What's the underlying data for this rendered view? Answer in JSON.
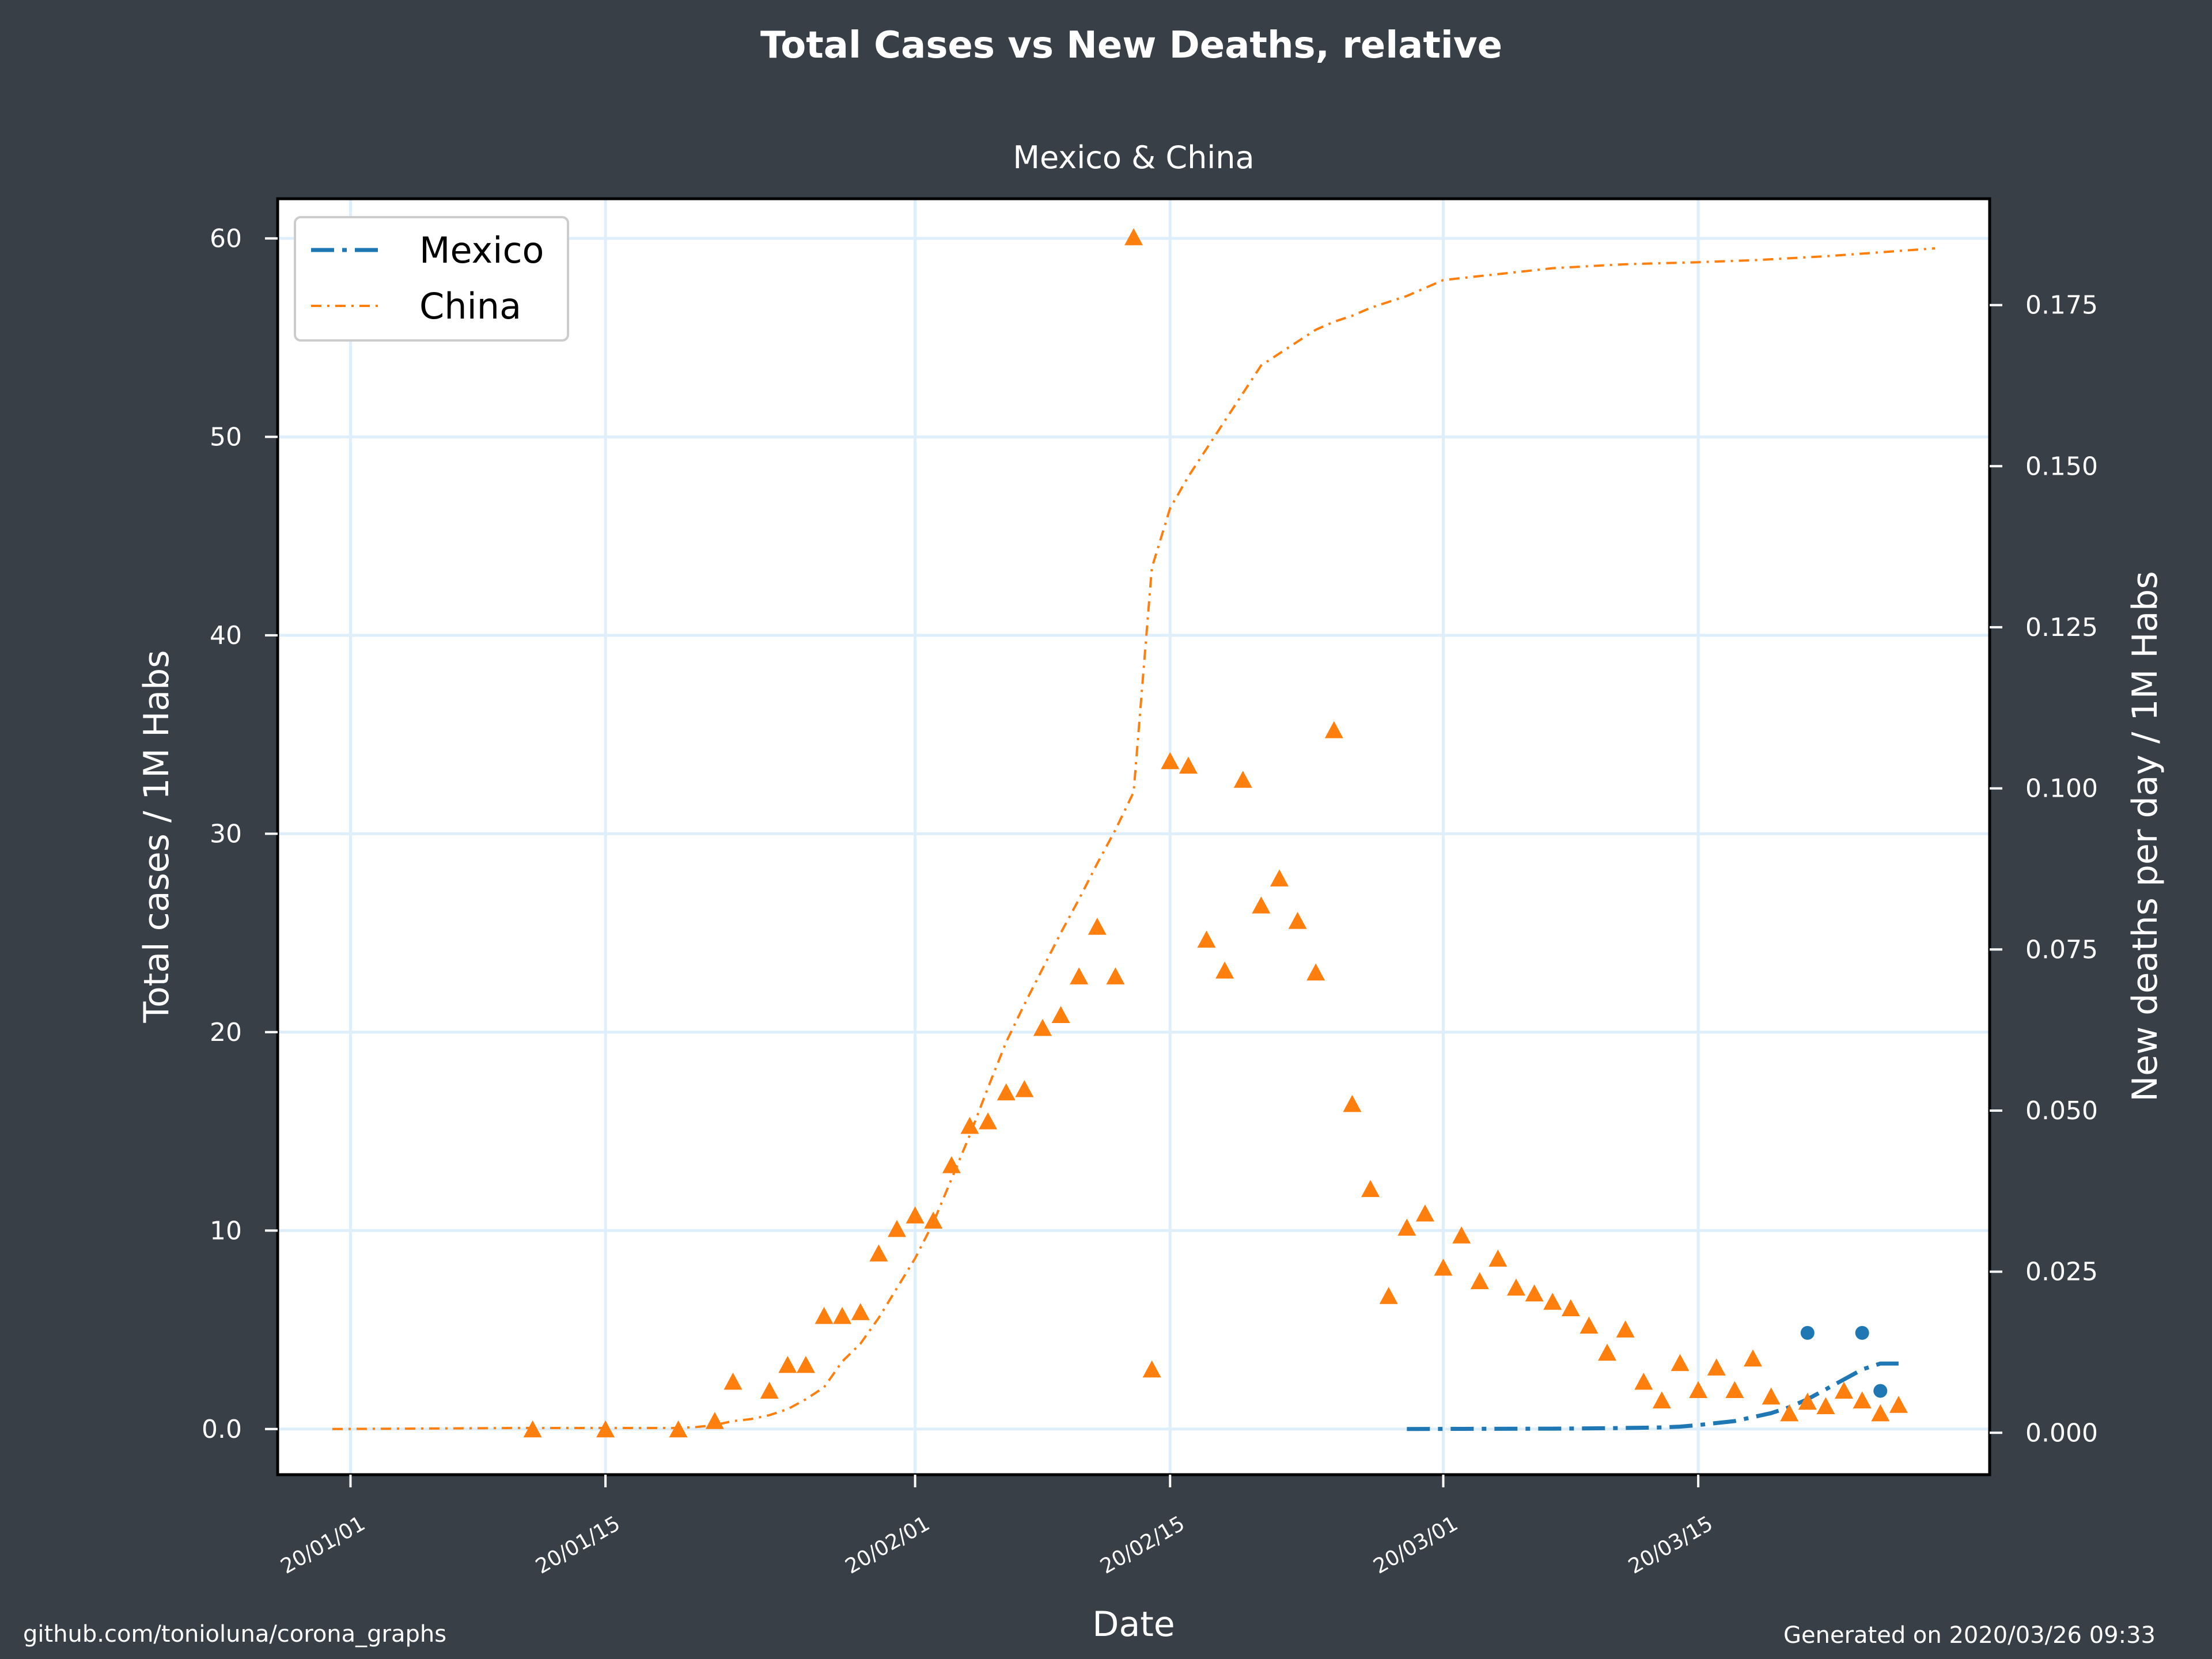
{
  "header": {
    "title": "Total Cases vs New Deaths, relative",
    "subtitle": "Mexico & China"
  },
  "footer": {
    "source": "github.com/tonioluna/corona_graphs",
    "generated": "Generated on 2020/03/26 09:33"
  },
  "colors": {
    "background": "#383f47",
    "plot_bg": "#ffffff",
    "grid": "#deeefb",
    "mexico": "#1f77b4",
    "china": "#ff7f0e",
    "text": "#ffffff"
  },
  "chart_data": {
    "type": "line",
    "title": "Total Cases vs New Deaths, relative",
    "subtitle": "Mexico & China",
    "xlabel": "Date",
    "ylabel": "Total cases / 1M Habs",
    "y2label": "New deaths per day / 1M Habs",
    "x_ticks": [
      "2020-01-01",
      "2020-01-15",
      "2020-02-01",
      "2020-02-15",
      "2020-03-01",
      "2020-03-15"
    ],
    "x_tick_labels": [
      "20/01/01",
      "20/01/15",
      "20/02/01",
      "20/02/15",
      "20/03/01",
      "20/03/15"
    ],
    "xlim": [
      "2019-12-28",
      "2020-03-31"
    ],
    "ylim": [
      -2.3,
      62
    ],
    "y_ticks": [
      0,
      10,
      20,
      30,
      40,
      50,
      60
    ],
    "y_tick_labels": [
      "0.0",
      "10",
      "20",
      "30",
      "40",
      "50",
      "60"
    ],
    "y2lim": [
      -0.0065,
      0.1915
    ],
    "y2_ticks": [
      0,
      0.025,
      0.05,
      0.075,
      0.1,
      0.125,
      0.15,
      0.175
    ],
    "y2_tick_labels": [
      "0.000",
      "0.025",
      "0.050",
      "0.075",
      "0.100",
      "0.125",
      "0.150",
      "0.175"
    ],
    "grid": true,
    "legend": "top-left",
    "series": [
      {
        "name": "Mexico",
        "axis": "left",
        "style": "dash-dot",
        "points": [
          [
            "2020-02-28",
            0.0
          ],
          [
            "2020-03-03",
            0.01
          ],
          [
            "2020-03-07",
            0.02
          ],
          [
            "2020-03-10",
            0.04
          ],
          [
            "2020-03-13",
            0.08
          ],
          [
            "2020-03-14",
            0.12
          ],
          [
            "2020-03-15",
            0.2
          ],
          [
            "2020-03-16",
            0.3
          ],
          [
            "2020-03-17",
            0.4
          ],
          [
            "2020-03-18",
            0.6
          ],
          [
            "2020-03-19",
            0.8
          ],
          [
            "2020-03-20",
            1.1
          ],
          [
            "2020-03-21",
            1.5
          ],
          [
            "2020-03-22",
            2.0
          ],
          [
            "2020-03-23",
            2.5
          ],
          [
            "2020-03-24",
            3.0
          ],
          [
            "2020-03-25",
            3.3
          ],
          [
            "2020-03-26",
            3.3
          ]
        ]
      },
      {
        "name": "China",
        "axis": "left",
        "style": "dash-dot",
        "points": [
          [
            "2019-12-31",
            0.0
          ],
          [
            "2020-01-10",
            0.05
          ],
          [
            "2020-01-19",
            0.05
          ],
          [
            "2020-01-20",
            0.1
          ],
          [
            "2020-01-21",
            0.2
          ],
          [
            "2020-01-22",
            0.4
          ],
          [
            "2020-01-23",
            0.5
          ],
          [
            "2020-01-24",
            0.7
          ],
          [
            "2020-01-25",
            1.0
          ],
          [
            "2020-01-26",
            1.5
          ],
          [
            "2020-01-27",
            2.1
          ],
          [
            "2020-01-28",
            3.4
          ],
          [
            "2020-01-29",
            4.3
          ],
          [
            "2020-01-30",
            5.6
          ],
          [
            "2020-01-31",
            7.1
          ],
          [
            "2020-02-01",
            8.6
          ],
          [
            "2020-02-02",
            10.4
          ],
          [
            "2020-02-03",
            12.6
          ],
          [
            "2020-02-04",
            14.8
          ],
          [
            "2020-02-05",
            17.2
          ],
          [
            "2020-02-06",
            19.5
          ],
          [
            "2020-02-07",
            21.4
          ],
          [
            "2020-02-08",
            23.2
          ],
          [
            "2020-02-09",
            25.0
          ],
          [
            "2020-02-10",
            26.7
          ],
          [
            "2020-02-11",
            28.5
          ],
          [
            "2020-02-12",
            30.2
          ],
          [
            "2020-02-13",
            32.1
          ],
          [
            "2020-02-14",
            43.4
          ],
          [
            "2020-02-15",
            46.4
          ],
          [
            "2020-02-16",
            48.0
          ],
          [
            "2020-02-17",
            49.4
          ],
          [
            "2020-02-18",
            50.8
          ],
          [
            "2020-02-19",
            52.2
          ],
          [
            "2020-02-20",
            53.6
          ],
          [
            "2020-02-21",
            54.2
          ],
          [
            "2020-02-22",
            54.8
          ],
          [
            "2020-02-23",
            55.4
          ],
          [
            "2020-02-24",
            55.8
          ],
          [
            "2020-02-25",
            56.1
          ],
          [
            "2020-02-26",
            56.5
          ],
          [
            "2020-02-27",
            56.8
          ],
          [
            "2020-02-28",
            57.1
          ],
          [
            "2020-02-29",
            57.5
          ],
          [
            "2020-03-01",
            57.9
          ],
          [
            "2020-03-03",
            58.1
          ],
          [
            "2020-03-05",
            58.3
          ],
          [
            "2020-03-07",
            58.5
          ],
          [
            "2020-03-09",
            58.6
          ],
          [
            "2020-03-11",
            58.7
          ],
          [
            "2020-03-15",
            58.8
          ],
          [
            "2020-03-18",
            58.9
          ],
          [
            "2020-03-22",
            59.1
          ],
          [
            "2020-03-25",
            59.3
          ],
          [
            "2020-03-28",
            59.5
          ]
        ]
      },
      {
        "name": "",
        "axis": "right",
        "style": "dots",
        "color": "mexico",
        "points": [
          [
            "2020-03-21",
            0.0155
          ],
          [
            "2020-03-24",
            0.0155
          ],
          [
            "2020-03-25",
            0.0065
          ]
        ]
      },
      {
        "name": "",
        "axis": "right",
        "style": "triangles",
        "color": "china",
        "points": [
          [
            "2020-01-11",
            0.0005
          ],
          [
            "2020-01-15",
            0.0005
          ],
          [
            "2020-01-19",
            0.0005
          ],
          [
            "2020-01-21",
            0.0018
          ],
          [
            "2020-01-22",
            0.0079
          ],
          [
            "2020-01-24",
            0.0065
          ],
          [
            "2020-01-25",
            0.0105
          ],
          [
            "2020-01-26",
            0.0105
          ],
          [
            "2020-01-27",
            0.0181
          ],
          [
            "2020-01-28",
            0.0181
          ],
          [
            "2020-01-29",
            0.0187
          ],
          [
            "2020-01-30",
            0.0278
          ],
          [
            "2020-01-31",
            0.0316
          ],
          [
            "2020-02-01",
            0.0337
          ],
          [
            "2020-02-02",
            0.0329
          ],
          [
            "2020-02-03",
            0.0415
          ],
          [
            "2020-02-04",
            0.0476
          ],
          [
            "2020-02-05",
            0.0483
          ],
          [
            "2020-02-06",
            0.0528
          ],
          [
            "2020-02-07",
            0.0533
          ],
          [
            "2020-02-08",
            0.0628
          ],
          [
            "2020-02-09",
            0.0648
          ],
          [
            "2020-02-10",
            0.0708
          ],
          [
            "2020-02-11",
            0.0785
          ],
          [
            "2020-02-12",
            0.0708
          ],
          [
            "2020-02-13",
            0.1855
          ],
          [
            "2020-02-14",
            0.0098
          ],
          [
            "2020-02-15",
            0.1042
          ],
          [
            "2020-02-16",
            0.1035
          ],
          [
            "2020-02-17",
            0.0765
          ],
          [
            "2020-02-18",
            0.0717
          ],
          [
            "2020-02-19",
            0.1013
          ],
          [
            "2020-02-20",
            0.0818
          ],
          [
            "2020-02-21",
            0.086
          ],
          [
            "2020-02-22",
            0.0794
          ],
          [
            "2020-02-23",
            0.0714
          ],
          [
            "2020-02-24",
            0.109
          ],
          [
            "2020-02-25",
            0.051
          ],
          [
            "2020-02-26",
            0.0378
          ],
          [
            "2020-02-27",
            0.0212
          ],
          [
            "2020-02-28",
            0.0318
          ],
          [
            "2020-02-29",
            0.034
          ],
          [
            "2020-03-01",
            0.0256
          ],
          [
            "2020-03-02",
            0.0306
          ],
          [
            "2020-03-03",
            0.0235
          ],
          [
            "2020-03-04",
            0.027
          ],
          [
            "2020-03-05",
            0.0225
          ],
          [
            "2020-03-06",
            0.0216
          ],
          [
            "2020-03-07",
            0.0203
          ],
          [
            "2020-03-08",
            0.0193
          ],
          [
            "2020-03-09",
            0.0166
          ],
          [
            "2020-03-10",
            0.0124
          ],
          [
            "2020-03-11",
            0.016
          ],
          [
            "2020-03-12",
            0.0079
          ],
          [
            "2020-03-13",
            0.005
          ],
          [
            "2020-03-14",
            0.0108
          ],
          [
            "2020-03-15",
            0.0066
          ],
          [
            "2020-03-16",
            0.0101
          ],
          [
            "2020-03-17",
            0.0066
          ],
          [
            "2020-03-18",
            0.0115
          ],
          [
            "2020-03-19",
            0.0056
          ],
          [
            "2020-03-20",
            0.003
          ],
          [
            "2020-03-21",
            0.0048
          ],
          [
            "2020-03-22",
            0.0041
          ],
          [
            "2020-03-23",
            0.0065
          ],
          [
            "2020-03-24",
            0.005
          ],
          [
            "2020-03-25",
            0.003
          ],
          [
            "2020-03-26",
            0.0043
          ]
        ]
      }
    ]
  }
}
